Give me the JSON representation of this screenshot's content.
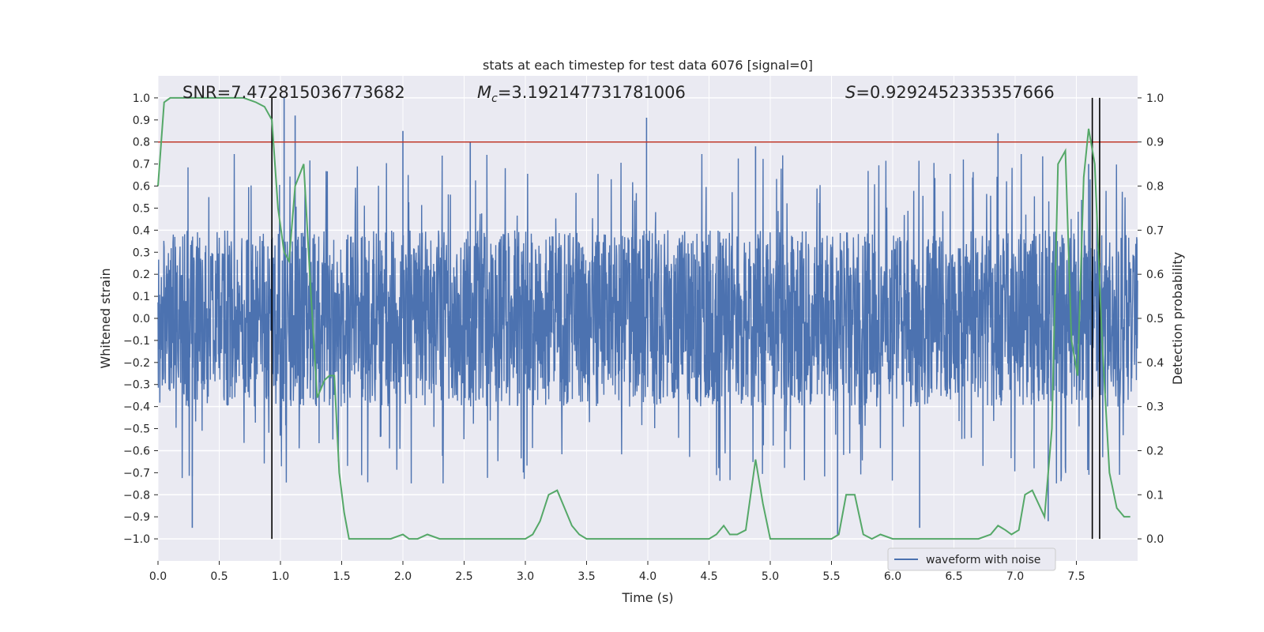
{
  "chart_data": {
    "type": "line",
    "title": "stats at each timestep for test data 6076 [signal=0]",
    "xlabel": "Time (s)",
    "ylabel": "Whitened strain",
    "y2label": "Detection probability",
    "xlim": [
      0.0,
      8.0
    ],
    "ylim": [
      -1.1,
      1.1
    ],
    "y2lim": [
      -0.05,
      1.05
    ],
    "x_ticks": [
      "0.0",
      "0.5",
      "1.0",
      "1.5",
      "2.0",
      "2.5",
      "3.0",
      "3.5",
      "4.0",
      "4.5",
      "5.0",
      "5.5",
      "6.0",
      "6.5",
      "7.0",
      "7.5"
    ],
    "y_ticks": [
      "1.0",
      "0.9",
      "0.8",
      "0.7",
      "0.6",
      "0.5",
      "0.4",
      "0.3",
      "0.2",
      "0.1",
      "0.0",
      "−0.1",
      "−0.2",
      "−0.3",
      "−0.4",
      "−0.5",
      "−0.6",
      "−0.7",
      "−0.8",
      "−0.9",
      "−1.0"
    ],
    "y2_ticks": [
      "1.0",
      "0.9",
      "0.8",
      "0.7",
      "0.6",
      "0.5",
      "0.4",
      "0.3",
      "0.2",
      "0.1",
      "0.0"
    ],
    "annotations": {
      "snr": "SNR=7.472815036773682",
      "mc_symbol": "M",
      "mc_sub": "c",
      "mc_value": "=3.192147731781006",
      "s_symbol": "S",
      "s_value": "=0.9292452335357666"
    },
    "legend": {
      "label": "waveform with noise",
      "position": "lower-right"
    },
    "threshold_line": {
      "y2": 0.9,
      "color": "#c0392b"
    },
    "vertical_markers_x": [
      0.93,
      7.63,
      7.69
    ],
    "series": [
      {
        "name": "waveform with noise",
        "axis": "left",
        "color": "#4c72b0",
        "envelope": {
          "typical_amplitude": 0.4,
          "peaks": [
            {
              "x": 0.28,
              "y": -0.95
            },
            {
              "x": 1.03,
              "y": 1.0
            },
            {
              "x": 1.12,
              "y": 0.92
            },
            {
              "x": 2.0,
              "y": 0.85
            },
            {
              "x": 2.55,
              "y": 0.8
            },
            {
              "x": 3.99,
              "y": 0.91
            },
            {
              "x": 4.88,
              "y": 0.78
            },
            {
              "x": 5.55,
              "y": -0.98
            },
            {
              "x": 6.22,
              "y": -0.95
            },
            {
              "x": 6.86,
              "y": 0.84
            },
            {
              "x": 7.27,
              "y": -0.92
            },
            {
              "x": 7.6,
              "y": 0.7
            }
          ]
        }
      },
      {
        "name": "",
        "axis": "right",
        "color": "#55a868",
        "x": [
          0.0,
          0.05,
          0.1,
          0.2,
          0.3,
          0.4,
          0.5,
          0.6,
          0.7,
          0.8,
          0.87,
          0.93,
          0.98,
          1.03,
          1.07,
          1.12,
          1.19,
          1.25,
          1.3,
          1.36,
          1.4,
          1.44,
          1.48,
          1.52,
          1.56,
          1.62,
          1.7,
          1.8,
          1.9,
          2.0,
          2.05,
          2.12,
          2.2,
          2.3,
          2.4,
          2.5,
          2.6,
          2.7,
          2.8,
          2.9,
          3.0,
          3.06,
          3.12,
          3.19,
          3.26,
          3.32,
          3.38,
          3.44,
          3.5,
          3.6,
          3.8,
          4.0,
          4.2,
          4.4,
          4.5,
          4.56,
          4.62,
          4.67,
          4.73,
          4.8,
          4.88,
          4.94,
          5.0,
          5.05,
          5.1,
          5.2,
          5.3,
          5.4,
          5.5,
          5.56,
          5.62,
          5.69,
          5.76,
          5.83,
          5.9,
          6.0,
          6.2,
          6.4,
          6.5,
          6.6,
          6.7,
          6.8,
          6.86,
          6.92,
          6.97,
          7.03,
          7.08,
          7.14,
          7.19,
          7.24,
          7.3,
          7.35,
          7.41,
          7.46,
          7.51,
          7.56,
          7.6,
          7.65,
          7.71,
          7.77,
          7.83,
          7.89,
          7.94
        ],
        "y": [
          0.8,
          0.99,
          1.0,
          1.0,
          1.0,
          1.0,
          1.0,
          1.0,
          1.0,
          0.99,
          0.98,
          0.95,
          0.75,
          0.65,
          0.63,
          0.8,
          0.85,
          0.55,
          0.32,
          0.36,
          0.37,
          0.37,
          0.15,
          0.06,
          0.0,
          0.0,
          0.0,
          0.0,
          0.0,
          0.01,
          0.0,
          0.0,
          0.01,
          0.0,
          0.0,
          0.0,
          0.0,
          0.0,
          0.0,
          0.0,
          0.0,
          0.01,
          0.04,
          0.1,
          0.11,
          0.07,
          0.03,
          0.01,
          0.0,
          0.0,
          0.0,
          0.0,
          0.0,
          0.0,
          0.0,
          0.01,
          0.03,
          0.01,
          0.01,
          0.02,
          0.18,
          0.08,
          0.0,
          0.0,
          0.0,
          0.0,
          0.0,
          0.0,
          0.0,
          0.01,
          0.1,
          0.1,
          0.01,
          0.0,
          0.01,
          0.0,
          0.0,
          0.0,
          0.0,
          0.0,
          0.0,
          0.01,
          0.03,
          0.02,
          0.01,
          0.02,
          0.1,
          0.11,
          0.08,
          0.05,
          0.25,
          0.85,
          0.88,
          0.45,
          0.37,
          0.82,
          0.93,
          0.85,
          0.45,
          0.15,
          0.07,
          0.05,
          0.05
        ]
      }
    ]
  }
}
